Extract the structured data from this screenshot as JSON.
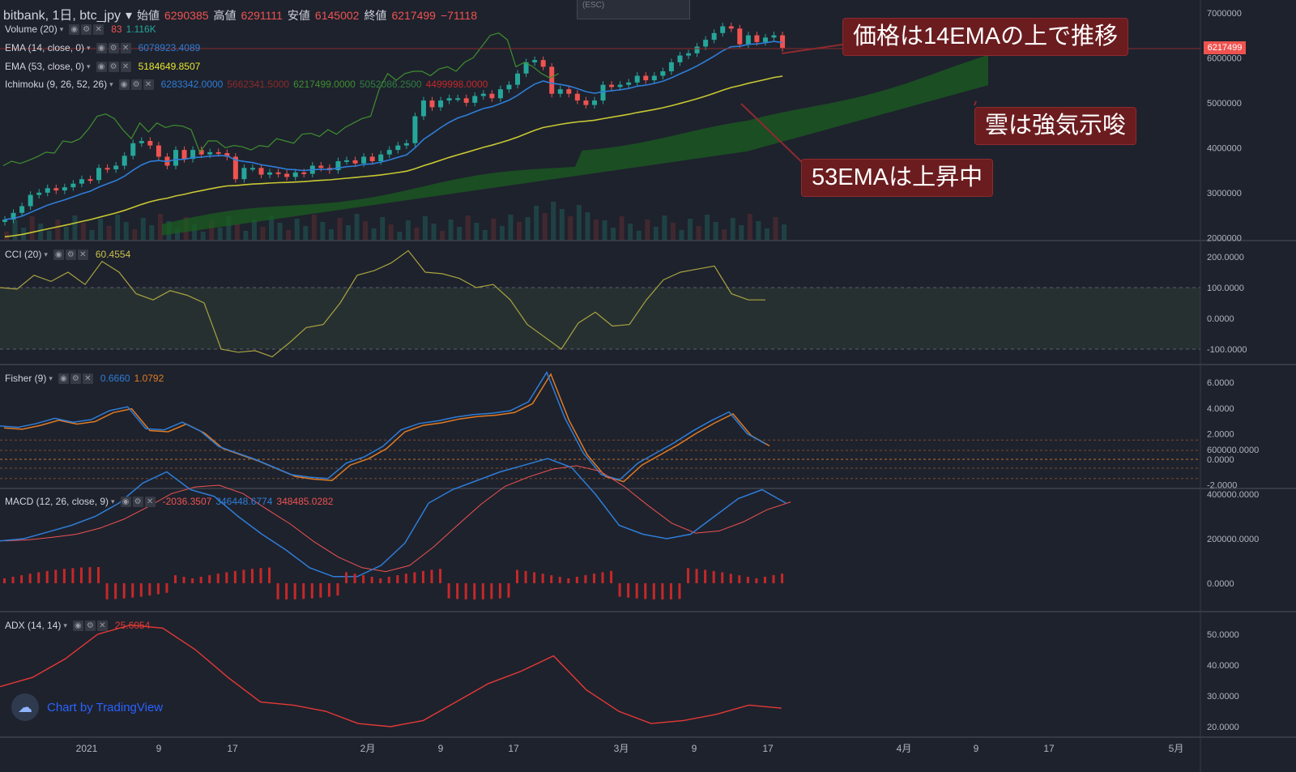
{
  "header": {
    "symbol": "bitbank, 1日, btc_jpy",
    "open_label": "始値",
    "open": "6290385",
    "high_label": "高値",
    "high": "6291111",
    "low_label": "安値",
    "low": "6145002",
    "close_label": "終値",
    "close": "6217499",
    "change": "−71118",
    "esc_hint": "(ESC)"
  },
  "legends": {
    "volume": {
      "label": "Volume (20)",
      "v1": "83",
      "v2": "1.116K"
    },
    "ema14": {
      "label": "EMA (14, close, 0)",
      "v1": "6078923.4089"
    },
    "ema53": {
      "label": "EMA (53, close, 0)",
      "v1": "5184649.8507"
    },
    "ichimoku": {
      "label": "Ichimoku (9, 26, 52, 26)",
      "v1": "6283342.0000",
      "v2": "5662341.5000",
      "v3": "6217499.0000",
      "v4": "5052086.2500",
      "v5": "4499998.0000"
    },
    "cci": {
      "label": "CCI (20)",
      "v1": "60.4554"
    },
    "fisher": {
      "label": "Fisher (9)",
      "v1": "0.6660",
      "v2": "1.0792"
    },
    "macd": {
      "label": "MACD (12, 26, close, 9)",
      "v1": "-2036.3507",
      "v2": "346448.6774",
      "v3": "348485.0282"
    },
    "adx": {
      "label": "ADX (14, 14)",
      "v1": "25.6054"
    }
  },
  "callouts": {
    "c1": "価格は14EMAの上で推移",
    "c2": "雲は強気示唆",
    "c3": "53EMAは上昇中"
  },
  "price_badge": "6217499",
  "watermark": "Chart by TradingView",
  "axes": {
    "price": [
      "7000000",
      "6000000",
      "5000000",
      "4000000",
      "3000000",
      "2000000"
    ],
    "cci": [
      "200.0000",
      "100.0000",
      "0.0000",
      "-100.0000"
    ],
    "fisher": [
      "6.0000",
      "4.0000",
      "2.0000",
      "0.0000",
      "-2.0000"
    ],
    "macd": [
      "600000.0000",
      "400000.0000",
      "200000.0000",
      "0.0000"
    ],
    "adx": [
      "50.0000",
      "40.0000",
      "30.0000",
      "20.0000"
    ],
    "time": [
      "2021",
      "9",
      "17",
      "2月",
      "9",
      "17",
      "3月",
      "9",
      "17",
      "4月",
      "9",
      "17",
      "5月"
    ]
  },
  "colors": {
    "bg": "#1e222d",
    "up": "#26a69a",
    "down": "#ef5350",
    "ema14": "#2e7dd7",
    "ema53": "#c8c832",
    "cloud": "#1b5e20",
    "chikou": "#3f8f2f",
    "cci": "#a8a33f",
    "fisher": "#2e7dd7",
    "trigger": "#e07b24",
    "macd": "#2e7dd7",
    "signal": "#ef5350",
    "adx": "#e53935"
  },
  "chart_data": {
    "type": "candlestick",
    "candles_close": [
      2.4,
      2.55,
      2.7,
      2.95,
      3.0,
      3.1,
      3.05,
      3.12,
      3.2,
      3.3,
      3.28,
      3.55,
      3.52,
      3.6,
      3.82,
      4.1,
      4.15,
      4.05,
      3.8,
      3.6,
      3.95,
      3.75,
      3.95,
      3.85,
      3.9,
      3.88,
      3.8,
      3.3,
      3.55,
      3.55,
      3.4,
      3.45,
      3.42,
      3.35,
      3.45,
      3.42,
      3.6,
      3.55,
      3.5,
      3.7,
      3.72,
      3.65,
      3.8,
      3.7,
      3.85,
      3.95,
      4.05,
      4.1,
      4.7,
      5.05,
      4.9,
      5.05,
      5.1,
      5.1,
      5.0,
      5.15,
      5.2,
      5.1,
      5.3,
      5.4,
      5.65,
      5.9,
      5.95,
      5.8,
      5.2,
      5.3,
      5.2,
      5.05,
      4.95,
      5.05,
      5.4,
      5.35,
      5.4,
      5.45,
      5.6,
      5.5,
      5.6,
      5.7,
      5.9,
      6.05,
      6.1,
      6.25,
      6.4,
      6.55,
      6.7,
      6.65,
      6.3,
      6.5,
      6.35,
      6.45,
      6.5,
      6.22
    ],
    "ema14_end": "6078923.4089",
    "ema53_end": "5184649.8507"
  }
}
